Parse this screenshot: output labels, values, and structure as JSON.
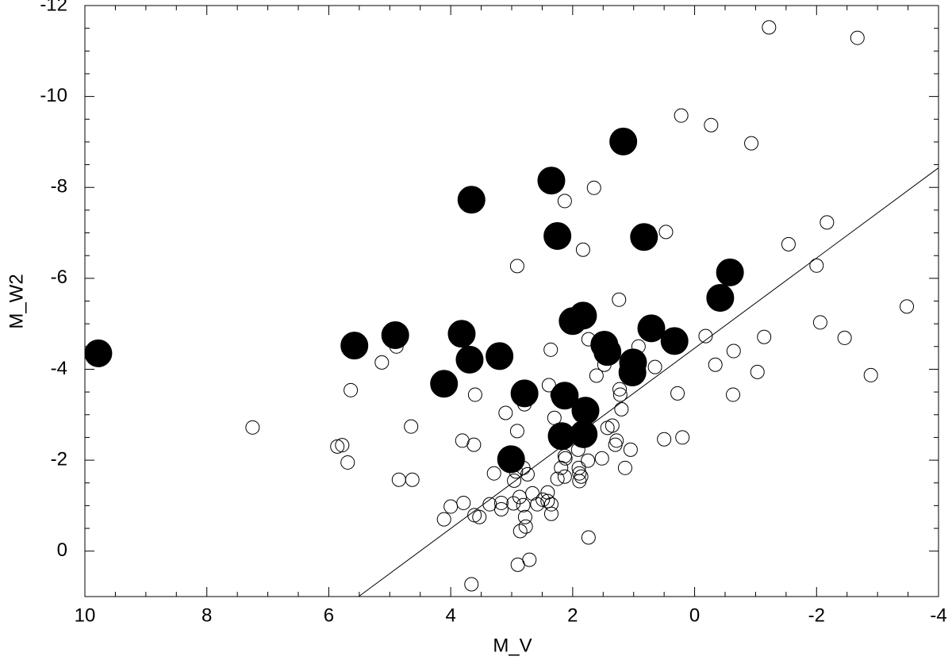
{
  "chart_data": {
    "type": "scatter",
    "xlabel": "M_V",
    "ylabel": "M_W2",
    "xlim": [
      10,
      -4
    ],
    "ylim": [
      1,
      -12
    ],
    "xticks": [
      10,
      8,
      6,
      4,
      2,
      0,
      -2,
      -4
    ],
    "yticks": [
      0,
      -2,
      -4,
      -6,
      -8,
      -10,
      -12
    ],
    "series": [
      {
        "type": "scatter",
        "color": "#000000",
        "filled": false,
        "x": [
          7.25,
          5.86,
          5.78,
          5.69,
          5.64,
          5.13,
          4.89,
          4.85,
          4.65,
          4.63,
          4.11,
          4.0,
          3.81,
          3.79,
          3.62,
          3.6,
          3.61,
          3.53,
          3.66,
          3.36,
          3.29,
          3.17,
          3.17,
          3.1,
          3.0,
          2.96,
          2.93,
          2.97,
          2.91,
          2.91,
          2.9,
          2.87,
          2.86,
          2.81,
          2.81,
          2.79,
          2.78,
          2.77,
          2.71,
          2.74,
          2.66,
          2.58,
          2.49,
          2.41,
          2.41,
          2.39,
          2.36,
          2.35,
          2.35,
          2.3,
          2.25,
          2.25,
          2.19,
          2.13,
          2.13,
          2.12,
          2.13,
          2.09,
          1.91,
          1.9,
          1.89,
          1.89,
          1.86,
          1.83,
          1.75,
          1.74,
          1.74,
          1.65,
          1.61,
          1.52,
          1.48,
          1.43,
          1.35,
          1.3,
          1.28,
          1.24,
          1.23,
          1.22,
          1.2,
          1.14,
          1.05,
          0.92,
          0.75,
          0.65,
          0.5,
          0.47,
          0.28,
          0.22,
          0.2,
          -0.18,
          -0.27,
          -0.34,
          -0.63,
          -0.64,
          -0.93,
          -1.03,
          -1.14,
          -1.22,
          -1.54,
          -2.0,
          -2.06,
          -2.17,
          -2.46,
          -2.67,
          -2.89,
          -3.48
        ],
        "values": [
          -2.72,
          -2.3,
          -2.33,
          -1.95,
          -3.54,
          -4.15,
          -4.5,
          -1.57,
          -2.74,
          -1.57,
          -0.7,
          -0.98,
          -2.43,
          -1.06,
          -2.34,
          -3.44,
          -0.79,
          -0.75,
          0.73,
          -1.03,
          -1.71,
          -1.06,
          -0.92,
          -3.04,
          -2.06,
          -1.55,
          -1.75,
          -1.05,
          -6.27,
          -2.64,
          0.3,
          -1.19,
          -0.44,
          -1.83,
          -1.01,
          -3.23,
          -0.75,
          -0.54,
          0.19,
          -1.69,
          -1.27,
          -1.03,
          -1.13,
          -1.29,
          -1.1,
          -3.65,
          -4.43,
          -1.03,
          -0.82,
          -2.93,
          -3.44,
          -1.59,
          -1.83,
          -7.7,
          -2.09,
          -2.04,
          -1.64,
          -5.01,
          -2.23,
          -1.83,
          -1.71,
          -1.54,
          -1.64,
          -6.63,
          -1.99,
          -0.3,
          -4.66,
          -7.99,
          -3.86,
          -2.04,
          -4.1,
          -2.71,
          -2.76,
          -2.34,
          -2.43,
          -5.53,
          -3.56,
          -3.44,
          -3.12,
          -1.83,
          -2.23,
          -4.5,
          -7.02,
          -4.05,
          -2.46,
          -7.02,
          -3.47,
          -9.58,
          -2.5,
          -4.73,
          -9.37,
          -4.1,
          -3.44,
          -4.4,
          -8.97,
          -3.94,
          -4.71,
          -11.52,
          -6.75,
          -6.28,
          -5.03,
          -7.23,
          -4.69,
          -11.29,
          -3.87,
          -5.38
        ]
      },
      {
        "type": "scatter",
        "color": "#000000",
        "filled": true,
        "x": [
          9.78,
          5.58,
          4.91,
          3.66,
          3.82,
          3.69,
          4.11,
          3.2,
          2.79,
          3.01,
          2.35,
          2.25,
          2.13,
          2.18,
          1.79,
          1.82,
          2.0,
          1.83,
          1.17,
          1.48,
          1.43,
          0.83,
          0.71,
          1.01,
          1.02,
          0.33,
          -0.42,
          -0.58
        ],
        "values": [
          -4.35,
          -4.52,
          -4.75,
          -7.73,
          -4.78,
          -4.21,
          -3.68,
          -4.29,
          -3.47,
          -2.02,
          -8.15,
          -6.93,
          -3.42,
          -2.53,
          -3.09,
          -2.57,
          -5.06,
          -5.18,
          -9.01,
          -4.54,
          -4.38,
          -6.91,
          -4.9,
          -4.15,
          -3.93,
          -4.62,
          -5.57,
          -6.13
        ]
      },
      {
        "type": "line",
        "color": "#000000",
        "x": [
          5.51,
          -4
        ],
        "values": [
          1,
          -8.43
        ]
      }
    ]
  }
}
